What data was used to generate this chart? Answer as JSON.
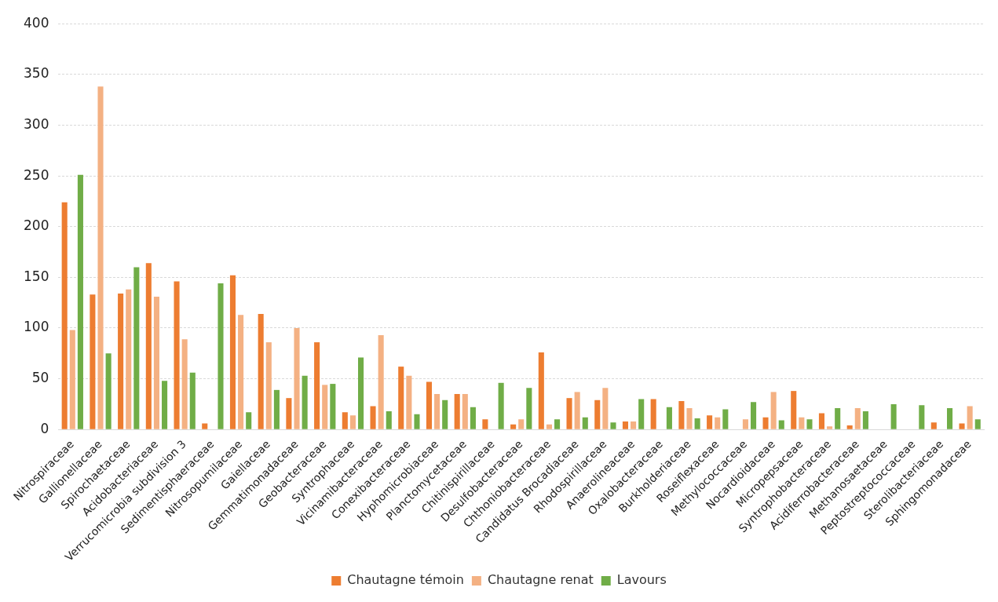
{
  "chart_data": {
    "type": "bar",
    "categories": [
      "Nitrospiraceae",
      "Gallionellaceae",
      "Spirochaetaceae",
      "Acidobacteriaceae",
      "Verrucomicrobia subdivision 3",
      "Sedimentisphaeraceae",
      "Nitrosopumilaceae",
      "Gaiellaceae",
      "Gemmatimonadaceae",
      "Geobacteraceae",
      "Syntrophaceae",
      "Vicinamibacteraceae",
      "Conexibacteraceae",
      "Hyphomicrobiaceae",
      "Planctomycetaceae",
      "Chitinispirillaceae",
      "Desulfobacteraceae",
      "Chthoniobacteraceae",
      "Candidatus Brocadiaceae",
      "Rhodospirillaceae",
      "Anaerolineaceae",
      "Oxalobacteraceae",
      "Burkholderiaceae",
      "Roseiflexaceae",
      "Methylococcaceae",
      "Nocardioidaceae",
      "Micropepsaceae",
      "Syntrophobacteraceae",
      "Acidiferrobacteraceae",
      "Methanosaetaceae",
      "Peptostreptococcaceae",
      "Sterolibacteriaceae",
      "Sphingomonadaceae"
    ],
    "series": [
      {
        "name": "Chautagne témoin",
        "color": "#ed7d31",
        "values": [
          224,
          133,
          134,
          164,
          146,
          6,
          152,
          114,
          31,
          86,
          17,
          23,
          62,
          47,
          35,
          10,
          5,
          76,
          31,
          29,
          8,
          30,
          28,
          14,
          0,
          12,
          38,
          16,
          4,
          0,
          0,
          7,
          6
        ]
      },
      {
        "name": "Chautagne renat",
        "color": "#f4b183",
        "values": [
          98,
          338,
          138,
          131,
          89,
          0,
          113,
          86,
          100,
          44,
          14,
          93,
          53,
          35,
          35,
          0,
          10,
          5,
          37,
          41,
          8,
          0,
          21,
          12,
          10,
          37,
          12,
          3,
          21,
          0,
          0,
          0,
          23
        ]
      },
      {
        "name": "Lavours",
        "color": "#70ad47",
        "values": [
          251,
          75,
          160,
          48,
          56,
          144,
          17,
          39,
          53,
          45,
          71,
          18,
          15,
          29,
          22,
          46,
          41,
          10,
          12,
          7,
          30,
          22,
          11,
          20,
          27,
          9,
          10,
          21,
          18,
          25,
          24,
          21,
          10
        ]
      }
    ],
    "ylim": [
      0,
      400
    ],
    "yticks": [
      0,
      50,
      100,
      150,
      200,
      250,
      300,
      350,
      400
    ],
    "grid": "y",
    "legend": "bottom"
  }
}
